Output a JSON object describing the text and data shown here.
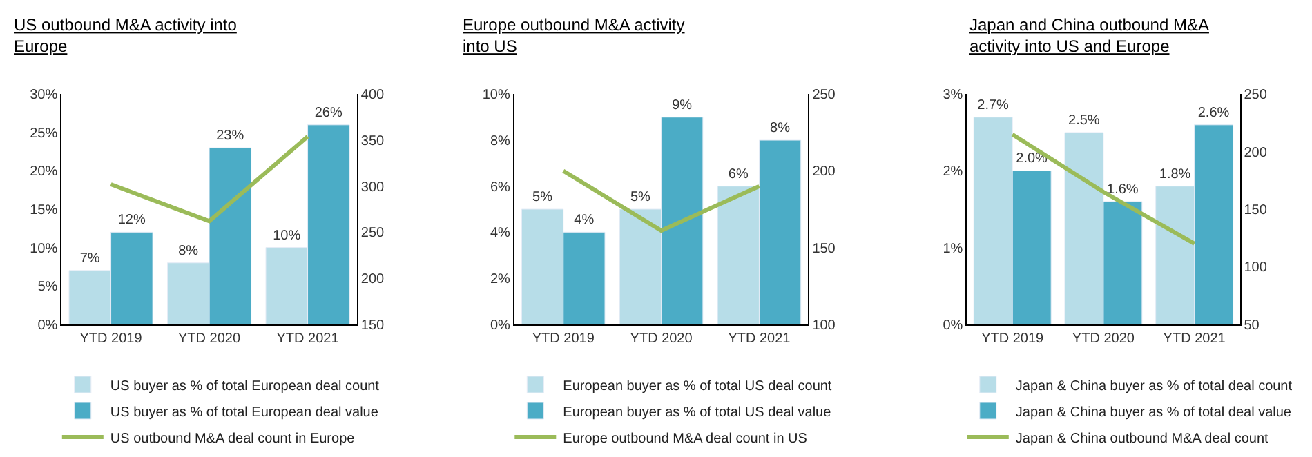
{
  "chart_data": [
    {
      "type": "bar",
      "title": "US outbound M&A activity into Europe",
      "categories": [
        "YTD 2019",
        "YTD 2020",
        "YTD 2021"
      ],
      "legend": "bottom",
      "grid": false,
      "series": [
        {
          "name": "US buyer as % of total European deal count",
          "color": "#b7dde8",
          "values": [
            7,
            8,
            10
          ],
          "value_labels": [
            "7%",
            "8%",
            "10%"
          ]
        },
        {
          "name": "US buyer as % of total European deal value",
          "color": "#4bacc6",
          "values": [
            12,
            23,
            26
          ],
          "value_labels": [
            "12%",
            "23%",
            "26%"
          ]
        },
        {
          "name": "US outbound M&A deal count in Europe",
          "type": "line",
          "axis": "y2",
          "color": "#9bbb59",
          "values": [
            302,
            262,
            354
          ]
        }
      ],
      "ylim": [
        0,
        30
      ],
      "yticks": [
        {
          "value": 0,
          "label": "0%"
        },
        {
          "value": 5,
          "label": "5%"
        },
        {
          "value": 10,
          "label": "10%"
        },
        {
          "value": 15,
          "label": "15%"
        },
        {
          "value": 20,
          "label": "20%"
        },
        {
          "value": 25,
          "label": "25%"
        },
        {
          "value": 30,
          "label": "30%"
        }
      ],
      "y2lim": [
        150,
        400
      ],
      "y2ticks": [
        150,
        200,
        250,
        300,
        350,
        400
      ]
    },
    {
      "type": "bar",
      "title": "Europe outbound M&A activity into US",
      "categories": [
        "YTD 2019",
        "YTD 2020",
        "YTD 2021"
      ],
      "legend": "bottom",
      "grid": false,
      "series": [
        {
          "name": "European buyer as % of total US deal count",
          "color": "#b7dde8",
          "values": [
            5,
            5,
            6
          ],
          "value_labels": [
            "5%",
            "5%",
            "6%"
          ]
        },
        {
          "name": "European buyer as % of total US deal value",
          "color": "#4bacc6",
          "values": [
            4,
            9,
            8
          ],
          "value_labels": [
            "4%",
            "9%",
            "8%"
          ]
        },
        {
          "name": "Europe outbound M&A deal count in US",
          "type": "line",
          "axis": "y2",
          "color": "#9bbb59",
          "values": [
            200,
            161,
            190
          ]
        }
      ],
      "ylim": [
        0,
        10
      ],
      "yticks": [
        {
          "value": 0,
          "label": "0%"
        },
        {
          "value": 2,
          "label": "2%"
        },
        {
          "value": 4,
          "label": "4%"
        },
        {
          "value": 6,
          "label": "6%"
        },
        {
          "value": 8,
          "label": "8%"
        },
        {
          "value": 10,
          "label": "10%"
        }
      ],
      "y2lim": [
        100,
        250
      ],
      "y2ticks": [
        100,
        150,
        200,
        250
      ]
    },
    {
      "type": "bar",
      "title": "Japan and China outbound M&A activity into US and Europe",
      "categories": [
        "YTD 2019",
        "YTD 2020",
        "YTD 2021"
      ],
      "legend": "bottom",
      "grid": false,
      "series": [
        {
          "name": "Japan & China buyer as % of total deal count",
          "color": "#b7dde8",
          "values": [
            2.7,
            2.5,
            1.8
          ],
          "value_labels": [
            "2.7%",
            "2.5%",
            "1.8%"
          ]
        },
        {
          "name": "Japan & China buyer as % of total deal value",
          "color": "#4bacc6",
          "values": [
            2.0,
            1.6,
            2.6
          ],
          "value_labels": [
            "2.0%",
            "1.6%",
            "2.6%"
          ]
        },
        {
          "name": "Japan & China outbound M&A deal count",
          "type": "line",
          "axis": "y2",
          "color": "#9bbb59",
          "values": [
            215,
            165,
            120
          ]
        }
      ],
      "ylim": [
        0,
        3
      ],
      "yticks": [
        {
          "value": 0,
          "label": "0%"
        },
        {
          "value": 1,
          "label": "1%"
        },
        {
          "value": 2,
          "label": "2%"
        },
        {
          "value": 3,
          "label": "3%"
        }
      ],
      "y2lim": [
        50,
        250
      ],
      "y2ticks": [
        50,
        100,
        150,
        200,
        250
      ]
    }
  ]
}
